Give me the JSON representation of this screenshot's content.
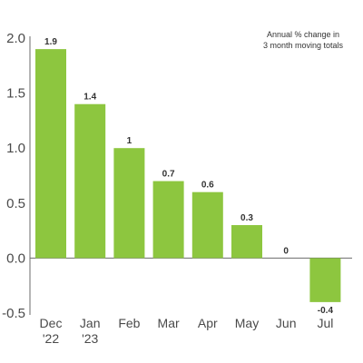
{
  "chart_data": {
    "type": "bar",
    "categories": [
      [
        "Dec",
        "'22"
      ],
      [
        "Jan",
        "'23"
      ],
      [
        "Feb"
      ],
      [
        "Mar"
      ],
      [
        "Apr"
      ],
      [
        "May"
      ],
      [
        "Jun"
      ],
      [
        "Jul"
      ]
    ],
    "values": [
      1.9,
      1.4,
      1.0,
      0.7,
      0.6,
      0.3,
      0.0,
      -0.4
    ],
    "value_labels": [
      "1.9",
      "1.4",
      "1",
      "0.7",
      "0.6",
      "0.3",
      "0",
      "-0.4"
    ],
    "yticks": [
      "2.0",
      "1.5",
      "1.0",
      "0.5",
      "0.0",
      "-0.5"
    ],
    "ylim": [
      -0.5,
      2.0
    ],
    "annotation": [
      "Annual % change in",
      "3 month moving totals"
    ],
    "bar_color": "#8dc63f",
    "grid": false,
    "legend": "none"
  }
}
